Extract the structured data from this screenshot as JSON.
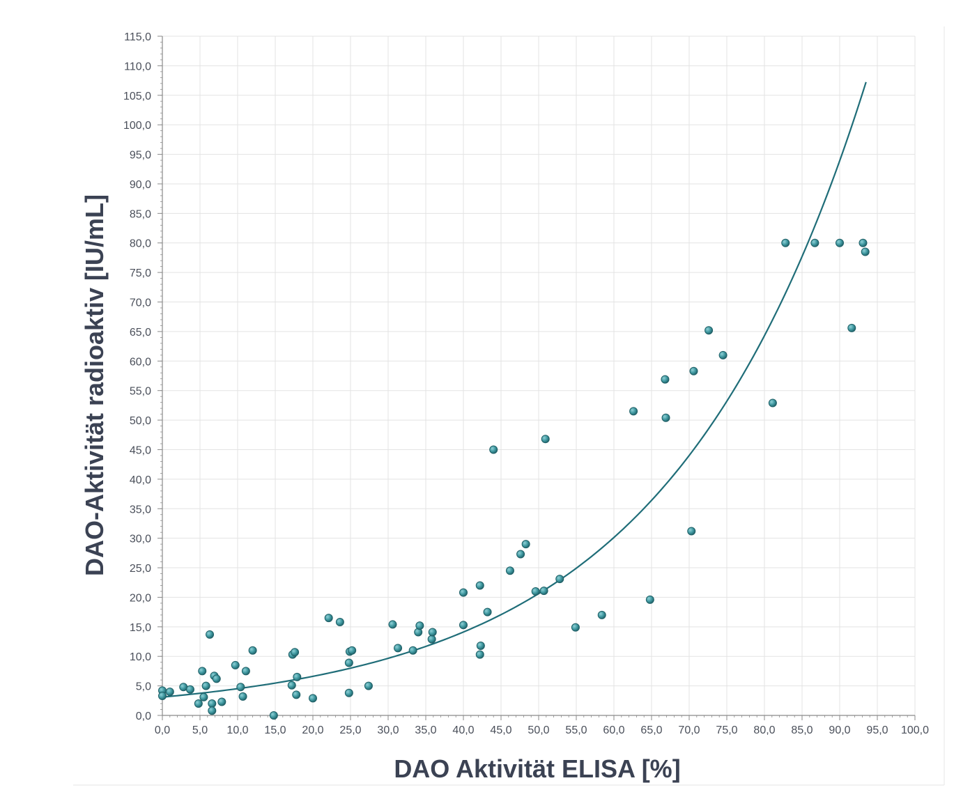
{
  "chart_data": {
    "type": "scatter",
    "xlabel": "DAO Aktivität ELISA [%]",
    "ylabel": "DAO-Aktivität radioaktiv [IU/mL]",
    "xlim": [
      0,
      100
    ],
    "ylim": [
      0,
      115
    ],
    "xticks": [
      "0,0",
      "5,0",
      "10,0",
      "15,0",
      "20,0",
      "25,0",
      "30,0",
      "35,0",
      "40,0",
      "45,0",
      "50,0",
      "55,0",
      "60,0",
      "65,0",
      "70,0",
      "75,0",
      "80,0",
      "85,0",
      "90,0",
      "95,0",
      "100,0"
    ],
    "yticks": [
      "0,0",
      "5,0",
      "10,0",
      "15,0",
      "20,0",
      "25,0",
      "30,0",
      "35,0",
      "40,0",
      "45,0",
      "50,0",
      "55,0",
      "60,0",
      "65,0",
      "70,0",
      "75,0",
      "80,0",
      "85,0",
      "90,0",
      "95,0",
      "100,0",
      "105,0",
      "110,0",
      "115,0"
    ],
    "grid": true,
    "colors": {
      "marker": "#3f98a0",
      "marker_edge": "#1f5f66",
      "trendline": "#1f6d78",
      "grid": "#e3e3e3",
      "axis": "#8a8a8a"
    },
    "series": [
      {
        "points": [
          [
            0.0,
            4.2
          ],
          [
            0.0,
            3.3
          ],
          [
            1.0,
            4.0
          ],
          [
            2.8,
            4.8
          ],
          [
            3.7,
            4.4
          ],
          [
            4.8,
            2.0
          ],
          [
            5.3,
            7.5
          ],
          [
            5.5,
            3.1
          ],
          [
            5.8,
            5.0
          ],
          [
            6.3,
            13.7
          ],
          [
            6.6,
            2.0
          ],
          [
            6.6,
            0.8
          ],
          [
            6.9,
            6.7
          ],
          [
            7.2,
            6.2
          ],
          [
            7.9,
            2.3
          ],
          [
            9.7,
            8.5
          ],
          [
            10.4,
            4.8
          ],
          [
            10.7,
            3.2
          ],
          [
            11.1,
            7.5
          ],
          [
            12.0,
            11.0
          ],
          [
            14.8,
            0.0
          ],
          [
            17.2,
            5.1
          ],
          [
            17.3,
            10.3
          ],
          [
            17.6,
            10.7
          ],
          [
            17.8,
            3.5
          ],
          [
            17.9,
            6.5
          ],
          [
            20.0,
            2.9
          ],
          [
            22.1,
            16.5
          ],
          [
            23.6,
            15.8
          ],
          [
            24.8,
            8.9
          ],
          [
            24.8,
            3.8
          ],
          [
            24.9,
            10.8
          ],
          [
            25.2,
            11.0
          ],
          [
            27.4,
            5.0
          ],
          [
            30.6,
            15.4
          ],
          [
            31.3,
            11.4
          ],
          [
            33.3,
            11.0
          ],
          [
            34.0,
            14.1
          ],
          [
            34.2,
            15.2
          ],
          [
            35.8,
            12.9
          ],
          [
            35.9,
            14.1
          ],
          [
            40.0,
            20.8
          ],
          [
            40.0,
            15.3
          ],
          [
            42.2,
            22.0
          ],
          [
            42.2,
            10.3
          ],
          [
            42.3,
            11.8
          ],
          [
            43.2,
            17.5
          ],
          [
            44.0,
            45.0
          ],
          [
            46.2,
            24.5
          ],
          [
            47.6,
            27.3
          ],
          [
            48.3,
            29.0
          ],
          [
            49.6,
            21.0
          ],
          [
            50.7,
            21.1
          ],
          [
            50.9,
            46.8
          ],
          [
            52.8,
            23.1
          ],
          [
            54.9,
            14.9
          ],
          [
            58.4,
            17.0
          ],
          [
            62.6,
            51.5
          ],
          [
            64.8,
            19.6
          ],
          [
            66.8,
            56.9
          ],
          [
            66.9,
            50.4
          ],
          [
            70.3,
            31.2
          ],
          [
            70.6,
            58.3
          ],
          [
            72.6,
            65.2
          ],
          [
            74.5,
            61.0
          ],
          [
            81.1,
            52.9
          ],
          [
            82.8,
            80.0
          ],
          [
            86.7,
            80.0
          ],
          [
            90.0,
            80.0
          ],
          [
            91.6,
            65.6
          ],
          [
            93.1,
            80.0
          ],
          [
            93.4,
            78.5
          ]
        ]
      }
    ],
    "trendline": {
      "model": "exponential",
      "a": 3.1,
      "b": 0.0379,
      "x_range": [
        0,
        93.5
      ]
    }
  }
}
